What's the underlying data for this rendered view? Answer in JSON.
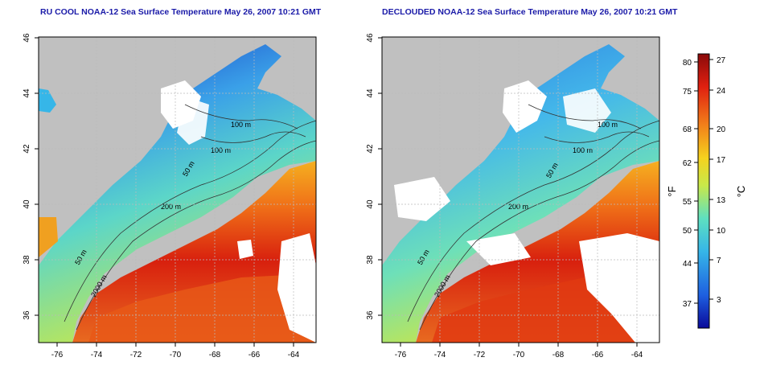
{
  "titles": {
    "left": "RU COOL NOAA-12 Sea Surface Temperature May 26, 2007 10:21 GMT",
    "right": "DECLOUDED NOAA-12 Sea Surface Temperature May 26, 2007 10:21 GMT"
  },
  "map": {
    "lon_ticks": [
      "-76",
      "-74",
      "-72",
      "-70",
      "-68",
      "-66",
      "-64"
    ],
    "lat_ticks": [
      "46",
      "44",
      "42",
      "40",
      "38",
      "36"
    ],
    "contours": [
      "100 m",
      "100 m",
      "50 m",
      "200 m",
      "50 m",
      "2000 m"
    ]
  },
  "colorbar": {
    "fahrenheit_label": "°F",
    "celsius_label": "°C",
    "fahrenheit_ticks": [
      "80",
      "75",
      "68",
      "62",
      "55",
      "50",
      "44",
      "37"
    ],
    "celsius_ticks": [
      "27",
      "24",
      "20",
      "17",
      "13",
      "10",
      "7",
      "3"
    ],
    "colors": [
      "#0a0a9a",
      "#1e5fe0",
      "#36b6e8",
      "#5ee0c0",
      "#c8e84a",
      "#f5d21e",
      "#f2801a",
      "#e02010",
      "#8a0a0a"
    ]
  }
}
